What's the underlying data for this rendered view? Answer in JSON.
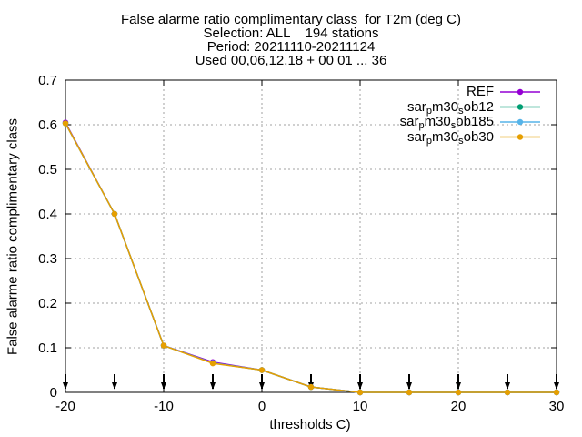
{
  "chart_data": {
    "type": "line",
    "title_lines": [
      "False alarme ratio complimentary class  for T2m (deg C)",
      "Selection: ALL    194 stations",
      "Period: 20211110-20211124",
      "Used 00,06,12,18 + 00 01 ... 36"
    ],
    "xlabel": "thresholds C)",
    "ylabel": "False alarme ratio complimentary class",
    "xlim": [
      -20,
      30
    ],
    "ylim": [
      0,
      0.7
    ],
    "x_ticks": [
      -20,
      -10,
      0,
      10,
      20,
      30
    ],
    "y_ticks": [
      0,
      0.1,
      0.2,
      0.3,
      0.4,
      0.5,
      0.6,
      0.7
    ],
    "grid": true,
    "legend_position": "top-right",
    "threshold_markers_x": [
      -20,
      -15,
      -10,
      -5,
      0,
      5,
      10,
      15,
      20,
      25,
      30
    ],
    "x": [
      -20,
      -15,
      -10,
      -5,
      0,
      5,
      10,
      15,
      20,
      25,
      30
    ],
    "series": [
      {
        "name": "REF",
        "legend_html": "REF",
        "color": "#9400d3",
        "values": [
          0.605,
          0.4,
          0.105,
          0.068,
          0.05,
          0.012,
          0.0,
          0.0,
          0.0,
          0.0,
          0.0
        ]
      },
      {
        "name": "sar_pm30_sob12",
        "legend_html": "sar<sub>p</sub>m30<sub>s</sub>ob12",
        "color": "#009e73",
        "values": [
          0.603,
          0.4,
          0.105,
          0.066,
          0.05,
          0.012,
          0.0,
          0.0,
          0.0,
          0.0,
          0.0
        ]
      },
      {
        "name": "sar_pm30_sob185",
        "legend_html": "sar<sub>p</sub>m30<sub>s</sub>ob185",
        "color": "#56b4e9",
        "values": [
          0.603,
          0.4,
          0.105,
          0.066,
          0.05,
          0.012,
          0.0,
          0.0,
          0.0,
          0.0,
          0.0
        ]
      },
      {
        "name": "sar_pm30_sob30",
        "legend_html": "sar<sub>p</sub>m30<sub>s</sub>ob30",
        "color": "#e69f00",
        "values": [
          0.603,
          0.4,
          0.105,
          0.065,
          0.05,
          0.012,
          0.0,
          0.0,
          0.0,
          0.0,
          0.0
        ]
      }
    ]
  }
}
